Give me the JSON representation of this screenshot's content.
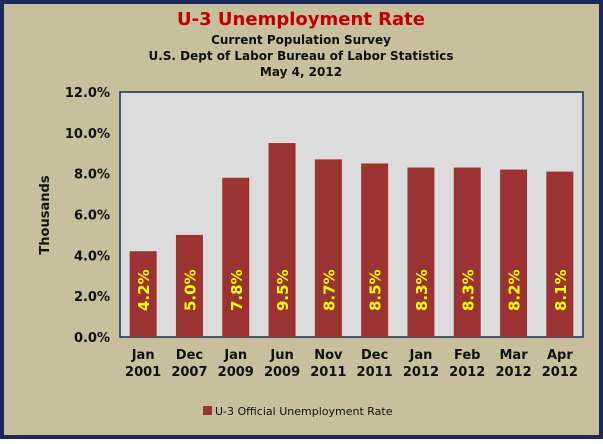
{
  "chart_data": {
    "type": "bar",
    "title": "U-3 Unemployment Rate",
    "subtitles": [
      "Current Population Survey",
      "U.S. Dept of Labor Bureau of Labor Statistics",
      "May 4, 2012"
    ],
    "xlabel": "",
    "ylabel": "Thousands",
    "ylim": [
      0,
      12
    ],
    "yticks": [
      0,
      2,
      4,
      6,
      8,
      10,
      12
    ],
    "ytick_labels": [
      "0.0%",
      "2.0%",
      "4.0%",
      "6.0%",
      "8.0%",
      "10.0%",
      "12.0%"
    ],
    "categories": [
      [
        "Jan",
        "2001"
      ],
      [
        "Dec",
        "2007"
      ],
      [
        "Jan",
        "2009"
      ],
      [
        "Jun",
        "2009"
      ],
      [
        "Nov",
        "2011"
      ],
      [
        "Dec",
        "2011"
      ],
      [
        "Jan",
        "2012"
      ],
      [
        "Feb",
        "2012"
      ],
      [
        "Mar",
        "2012"
      ],
      [
        "Apr",
        "2012"
      ]
    ],
    "series": [
      {
        "name": "U-3 Official Unemployment Rate",
        "values": [
          4.2,
          5.0,
          7.8,
          9.5,
          8.7,
          8.5,
          8.3,
          8.3,
          8.2,
          8.1
        ]
      }
    ],
    "data_labels": [
      "4.2%",
      "5.0%",
      "7.8%",
      "9.5%",
      "8.7%",
      "8.5%",
      "8.3%",
      "8.3%",
      "8.2%",
      "8.1%"
    ],
    "grid": false,
    "legend_position": "bottom",
    "colors": {
      "bar": "#9b3333",
      "label": "#ffff00",
      "title": "#c00000",
      "background": "#c8bf9c",
      "plot": "#dcdcdc",
      "border": "#1a2a5a"
    }
  }
}
